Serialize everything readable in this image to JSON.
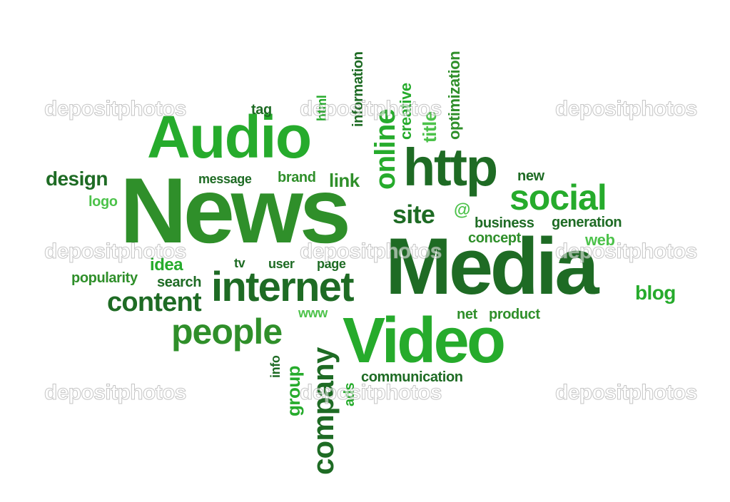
{
  "colors": {
    "dark": "#1e6b24",
    "medium": "#2f8f2a",
    "bright": "#26ab2c",
    "light": "#4cc24a"
  },
  "watermark": "depositphotos",
  "words": {
    "audio": "Audio",
    "news": "News",
    "media": "Media",
    "video": "Video",
    "internet": "internet",
    "http": "http",
    "social": "social",
    "people": "people",
    "content": "content",
    "company": "company",
    "online": "online",
    "design": "design",
    "logo": "logo",
    "message": "message",
    "brand": "brand",
    "link": "link",
    "tag": "tag",
    "html": "html",
    "information": "information",
    "creative": "creative",
    "title": "title",
    "optimization": "optimization",
    "new": "new",
    "site": "site",
    "at": "@",
    "business": "business",
    "generation": "generation",
    "concept": "concept",
    "web": "web",
    "blog": "blog",
    "tv": "tv",
    "user": "user",
    "page": "page",
    "idea": "idea",
    "popularity": "popularity",
    "search": "search",
    "www": "www",
    "net": "net",
    "product": "product",
    "info": "info",
    "group": "group",
    "ads": "ads",
    "communication": "communication"
  }
}
